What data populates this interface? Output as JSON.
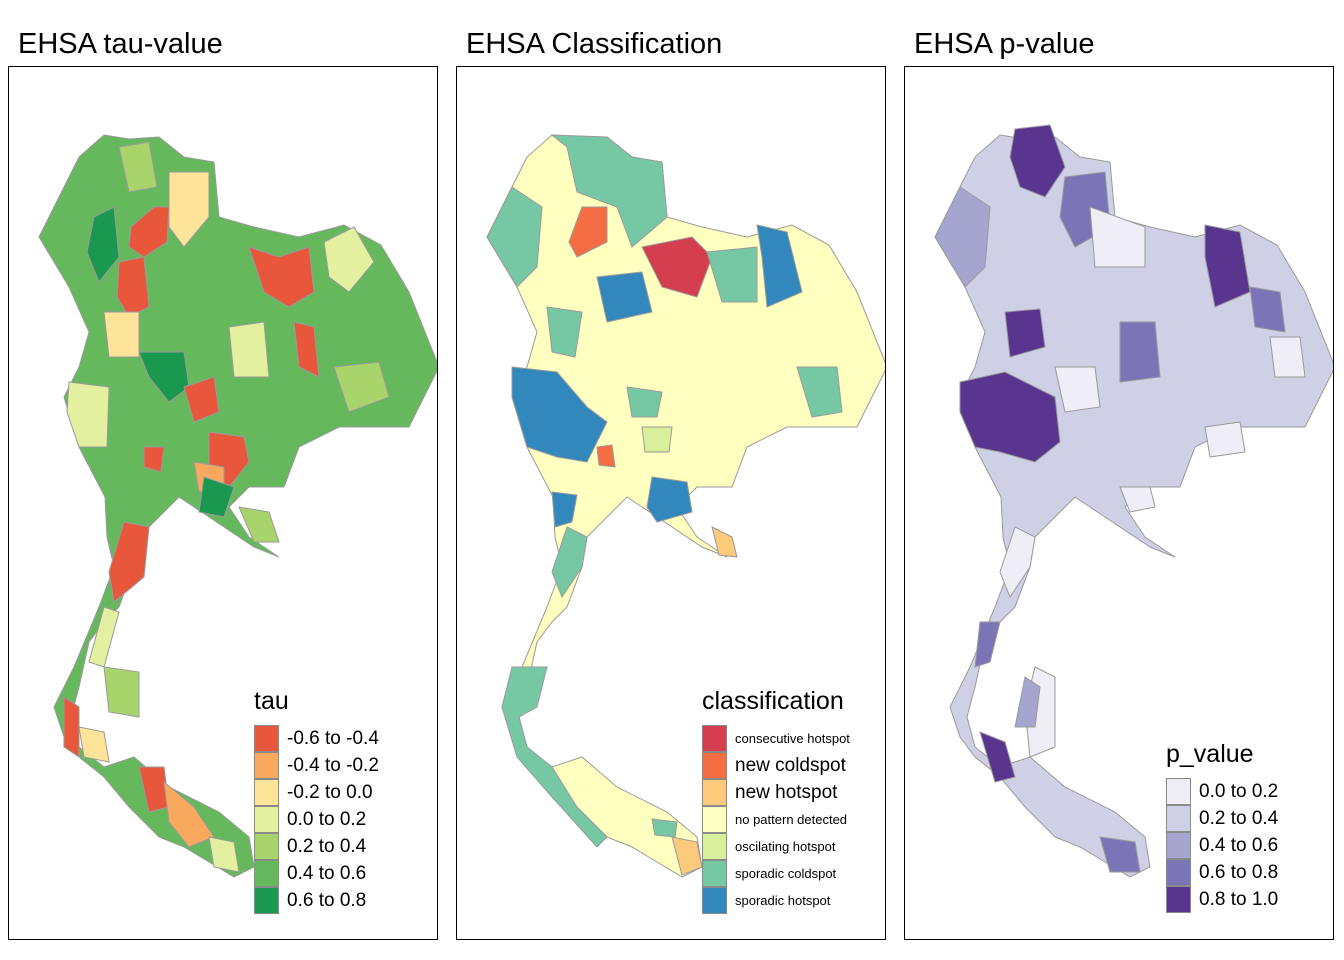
{
  "panels": [
    {
      "title": "EHSA tau-value",
      "legend": {
        "title": "tau",
        "items": [
          {
            "label": "-0.6 to -0.4",
            "color": "#e8573c"
          },
          {
            "label": "-0.4 to -0.2",
            "color": "#f9a95e"
          },
          {
            "label": "-0.2 to 0.0",
            "color": "#fde499"
          },
          {
            "label": "0.0 to 0.2",
            "color": "#e3f0a0"
          },
          {
            "label": "0.2 to 0.4",
            "color": "#a9d46b"
          },
          {
            "label": "0.4 to 0.6",
            "color": "#66b85c"
          },
          {
            "label": "0.6 to 0.8",
            "color": "#1a9850"
          }
        ]
      }
    },
    {
      "title": "EHSA Classification",
      "legend": {
        "title": "classification",
        "items": [
          {
            "label": "consecutive hotspot",
            "color": "#d53e4f"
          },
          {
            "label": "new coldspot",
            "color": "#f46d43"
          },
          {
            "label": "new hotspot",
            "color": "#fdc97a"
          },
          {
            "label": "no pattern detected",
            "color": "#ffffbf"
          },
          {
            "label": "oscilating hotspot",
            "color": "#d9ef9b"
          },
          {
            "label": "sporadic coldspot",
            "color": "#76c8a5"
          },
          {
            "label": "sporadic hotspot",
            "color": "#3288bd"
          }
        ]
      }
    },
    {
      "title": "EHSA p-value",
      "legend": {
        "title": "p_value",
        "items": [
          {
            "label": "0.0 to 0.2",
            "color": "#efeef6"
          },
          {
            "label": "0.2 to 0.4",
            "color": "#cfcfe6"
          },
          {
            "label": "0.4 to 0.6",
            "color": "#a6a5d0"
          },
          {
            "label": "0.6 to 0.8",
            "color": "#7b75b8"
          },
          {
            "label": "0.8 to 1.0",
            "color": "#59358f"
          }
        ]
      }
    }
  ]
}
